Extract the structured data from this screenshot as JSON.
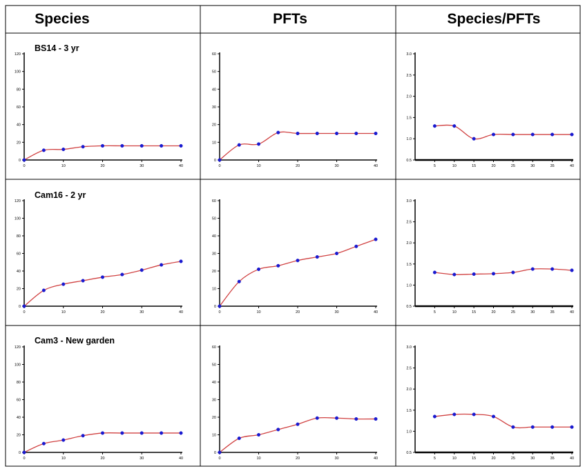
{
  "headers": [
    "Species",
    "PFTs",
    "Species/PFTs"
  ],
  "row_labels": [
    "BS14 - 3 yr",
    "Cam16 - 2 yr",
    "Cam3 - New garden"
  ],
  "colors": {
    "line": "#d04040",
    "marker": "#1a1ad0",
    "axis": "#000000",
    "border": "#000000"
  },
  "chart_data": [
    {
      "type": "line",
      "row": "BS14 - 3 yr",
      "column": "Species",
      "x": [
        0,
        5,
        10,
        15,
        20,
        25,
        30,
        35,
        40
      ],
      "y": [
        0,
        11,
        12,
        15,
        16,
        16,
        16,
        16,
        16
      ],
      "ylim": [
        0,
        120
      ],
      "xlim": [
        0,
        40
      ],
      "yticks": [
        "0",
        "20",
        "40",
        "60",
        "80",
        "100",
        "120"
      ],
      "xticks": [
        "0",
        "10",
        "20",
        "30",
        "40"
      ]
    },
    {
      "type": "line",
      "row": "BS14 - 3 yr",
      "column": "PFTs",
      "x": [
        0,
        5,
        10,
        15,
        20,
        25,
        30,
        35,
        40
      ],
      "y": [
        0,
        8.5,
        9,
        15.5,
        15,
        15,
        15,
        15,
        15
      ],
      "ylim": [
        0,
        60
      ],
      "xlim": [
        0,
        40
      ],
      "yticks": [
        "0",
        "10",
        "20",
        "30",
        "40",
        "50",
        "60"
      ],
      "xticks": [
        "0",
        "10",
        "20",
        "30",
        "40"
      ]
    },
    {
      "type": "line",
      "row": "BS14 - 3 yr",
      "column": "Species/PFTs",
      "x": [
        5,
        10,
        15,
        20,
        25,
        30,
        35,
        40
      ],
      "y": [
        1.3,
        1.3,
        1.0,
        1.1,
        1.1,
        1.1,
        1.1,
        1.1
      ],
      "ylim": [
        0.5,
        3.0
      ],
      "xlim": [
        5,
        40
      ],
      "yticks": [
        "0.5",
        "1.0",
        "1.5",
        "2.0",
        "2.5",
        "3.0"
      ],
      "xticks": [
        "5",
        "10",
        "15",
        "20",
        "25",
        "30",
        "35",
        "40"
      ]
    },
    {
      "type": "line",
      "row": "Cam16 - 2 yr",
      "column": "Species",
      "x": [
        0,
        5,
        10,
        15,
        20,
        25,
        30,
        35,
        40
      ],
      "y": [
        0,
        18,
        25,
        29,
        33,
        36,
        41,
        47,
        51
      ],
      "ylim": [
        0,
        120
      ],
      "xlim": [
        0,
        40
      ],
      "yticks": [
        "0",
        "20",
        "40",
        "60",
        "80",
        "100",
        "120"
      ],
      "xticks": [
        "0",
        "10",
        "20",
        "30",
        "40"
      ]
    },
    {
      "type": "line",
      "row": "Cam16 - 2 yr",
      "column": "PFTs",
      "x": [
        0,
        5,
        10,
        15,
        20,
        25,
        30,
        35,
        40
      ],
      "y": [
        0,
        14,
        21,
        23,
        26,
        28,
        30,
        34,
        38
      ],
      "ylim": [
        0,
        60
      ],
      "xlim": [
        0,
        40
      ],
      "yticks": [
        "0",
        "10",
        "20",
        "30",
        "40",
        "50",
        "60"
      ],
      "xticks": [
        "0",
        "10",
        "20",
        "30",
        "40"
      ]
    },
    {
      "type": "line",
      "row": "Cam16 - 2 yr",
      "column": "Species/PFTs",
      "x": [
        5,
        10,
        15,
        20,
        25,
        30,
        35,
        40
      ],
      "y": [
        1.3,
        1.25,
        1.26,
        1.27,
        1.3,
        1.38,
        1.38,
        1.35
      ],
      "ylim": [
        0.5,
        3.0
      ],
      "xlim": [
        5,
        40
      ],
      "yticks": [
        "0.5",
        "1.0",
        "1.5",
        "2.0",
        "2.5",
        "3.0"
      ],
      "xticks": [
        "5",
        "10",
        "15",
        "20",
        "25",
        "30",
        "35",
        "40"
      ]
    },
    {
      "type": "line",
      "row": "Cam3 - New garden",
      "column": "Species",
      "x": [
        0,
        5,
        10,
        15,
        20,
        25,
        30,
        35,
        40
      ],
      "y": [
        0,
        10,
        14,
        19,
        22,
        22,
        22,
        22,
        22
      ],
      "ylim": [
        0,
        120
      ],
      "xlim": [
        0,
        40
      ],
      "yticks": [
        "0",
        "20",
        "40",
        "60",
        "80",
        "100",
        "120"
      ],
      "xticks": [
        "0",
        "10",
        "20",
        "30",
        "40"
      ]
    },
    {
      "type": "line",
      "row": "Cam3 - New garden",
      "column": "PFTs",
      "x": [
        0,
        5,
        10,
        15,
        20,
        25,
        30,
        35,
        40
      ],
      "y": [
        0,
        8,
        10,
        13,
        16,
        19.5,
        19.5,
        19,
        19
      ],
      "ylim": [
        0,
        60
      ],
      "xlim": [
        0,
        40
      ],
      "yticks": [
        "0",
        "10",
        "20",
        "30",
        "40",
        "50",
        "60"
      ],
      "xticks": [
        "0",
        "10",
        "20",
        "30",
        "40"
      ]
    },
    {
      "type": "line",
      "row": "Cam3 - New garden",
      "column": "Species/PFTs",
      "x": [
        5,
        10,
        15,
        20,
        25,
        30,
        35,
        40
      ],
      "y": [
        1.35,
        1.4,
        1.4,
        1.35,
        1.1,
        1.1,
        1.1,
        1.1
      ],
      "ylim": [
        0.5,
        3.0
      ],
      "xlim": [
        5,
        40
      ],
      "yticks": [
        "0.5",
        "1.0",
        "1.5",
        "2.0",
        "2.5",
        "3.0"
      ],
      "xticks": [
        "5",
        "10",
        "15",
        "20",
        "25",
        "30",
        "35",
        "40"
      ]
    }
  ]
}
